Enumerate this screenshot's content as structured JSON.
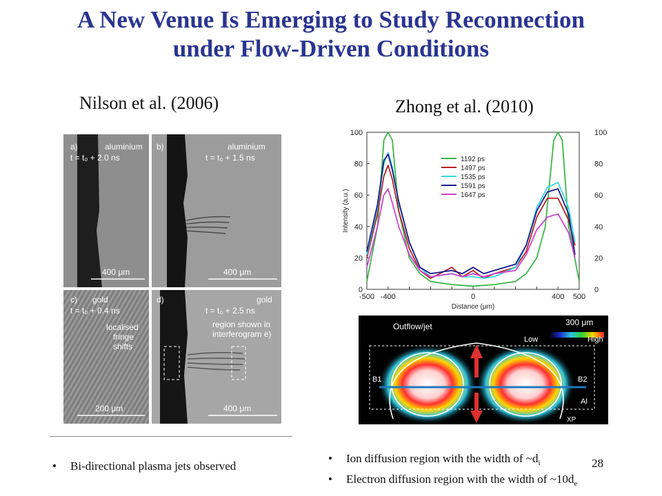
{
  "title_line1": "A New Venue Is Emerging to Study Reconnection",
  "title_line2": "under Flow-Driven Conditions",
  "left_caption": "Nilson et al. (2006)",
  "right_caption": "Zhong et al. (2010)",
  "left_bullets": [
    "Bi-directional plasma jets observed"
  ],
  "right_bullets": [
    {
      "text": "Ion diffusion region with the width of ~d",
      "sub": "i"
    },
    {
      "text": "Electron diffusion region with the width of ~10d",
      "sub": "e"
    }
  ],
  "slide_number": "28",
  "nilson_figure": {
    "panels": [
      {
        "label": "a)",
        "material": "aluminium",
        "time": "t = t₀ + 2.0 ns",
        "scale": "400 μm"
      },
      {
        "label": "b)",
        "material": "aluminium",
        "time": "t = t₀ + 1.5 ns",
        "scale": "400 μm"
      },
      {
        "label": "c)",
        "material": "gold",
        "time": "t = t₀ + 0.4 ns",
        "scale": "200 μm",
        "note": [
          "localised",
          "fringe",
          "shifts"
        ]
      },
      {
        "label": "d)",
        "material": "gold",
        "time": "t = t₀ + 2.5 ns",
        "scale": "400 μm",
        "note": [
          "region shown in",
          "interferogram e)"
        ]
      }
    ]
  },
  "chart_data": {
    "type": "line",
    "xlabel": "Distance (μm)",
    "ylabel": "Intensity (a.u.)",
    "xlim": [
      -500,
      500
    ],
    "ylim": [
      0,
      100
    ],
    "xticks": [
      -500,
      -400,
      -300,
      -200,
      -100,
      0,
      100,
      200,
      300,
      400,
      500
    ],
    "yticks": [
      0,
      20,
      40,
      60,
      80,
      100
    ],
    "legend_position": "top-center",
    "series": [
      {
        "name": "1192 ps",
        "color": "#3cb54a",
        "x": [
          -500,
          -450,
          -420,
          -400,
          -380,
          -350,
          -300,
          -250,
          -200,
          -100,
          0,
          100,
          200,
          250,
          300,
          340,
          380,
          400,
          420,
          450,
          500
        ],
        "y": [
          5,
          40,
          95,
          100,
          95,
          50,
          20,
          10,
          5,
          3,
          2,
          3,
          5,
          10,
          20,
          40,
          95,
          100,
          95,
          40,
          5
        ]
      },
      {
        "name": "1497 ps",
        "color": "#b22222",
        "x": [
          -500,
          -450,
          -420,
          -400,
          -380,
          -350,
          -300,
          -250,
          -200,
          -100,
          -50,
          0,
          50,
          100,
          200,
          250,
          300,
          350,
          400,
          450,
          480
        ],
        "y": [
          20,
          48,
          72,
          79,
          70,
          50,
          26,
          12,
          7,
          14,
          8,
          12,
          7,
          10,
          14,
          24,
          46,
          58,
          58,
          44,
          28
        ]
      },
      {
        "name": "1535 ps",
        "color": "#34d9e8",
        "x": [
          -500,
          -450,
          -420,
          -400,
          -380,
          -350,
          -300,
          -250,
          -200,
          -100,
          -50,
          0,
          50,
          100,
          200,
          250,
          300,
          350,
          400,
          450,
          480
        ],
        "y": [
          22,
          52,
          80,
          87,
          78,
          55,
          30,
          14,
          8,
          10,
          8,
          8,
          7,
          8,
          14,
          28,
          52,
          65,
          68,
          52,
          30
        ]
      },
      {
        "name": "1591 ps",
        "color": "#1a1a8a",
        "x": [
          -500,
          -450,
          -420,
          -400,
          -380,
          -350,
          -300,
          -250,
          -200,
          -100,
          -50,
          0,
          50,
          100,
          200,
          250,
          300,
          350,
          400,
          450,
          480
        ],
        "y": [
          24,
          54,
          82,
          86,
          76,
          56,
          30,
          14,
          10,
          12,
          10,
          14,
          10,
          12,
          16,
          28,
          50,
          62,
          64,
          48,
          22
        ]
      },
      {
        "name": "1647 ps",
        "color": "#cc44cc",
        "x": [
          -500,
          -450,
          -420,
          -400,
          -380,
          -350,
          -300,
          -250,
          -200,
          -100,
          -50,
          0,
          50,
          100,
          200,
          250,
          300,
          350,
          400,
          450,
          480
        ],
        "y": [
          14,
          40,
          60,
          64,
          55,
          40,
          22,
          12,
          8,
          10,
          8,
          10,
          8,
          10,
          12,
          22,
          38,
          46,
          48,
          36,
          20
        ]
      }
    ]
  },
  "zhong_image": {
    "scale_label": "300 μm",
    "colorbar_low": "Low",
    "colorbar_high": "High",
    "outflow_label": "Outflow/jet",
    "left_label": "B1",
    "right_label": "B2",
    "material_label": "Al",
    "bottom_label": "XP"
  },
  "colors": {
    "title": "#2a3591",
    "arrow_red": "#e03030",
    "axis_blue": "#1f7ac1"
  }
}
